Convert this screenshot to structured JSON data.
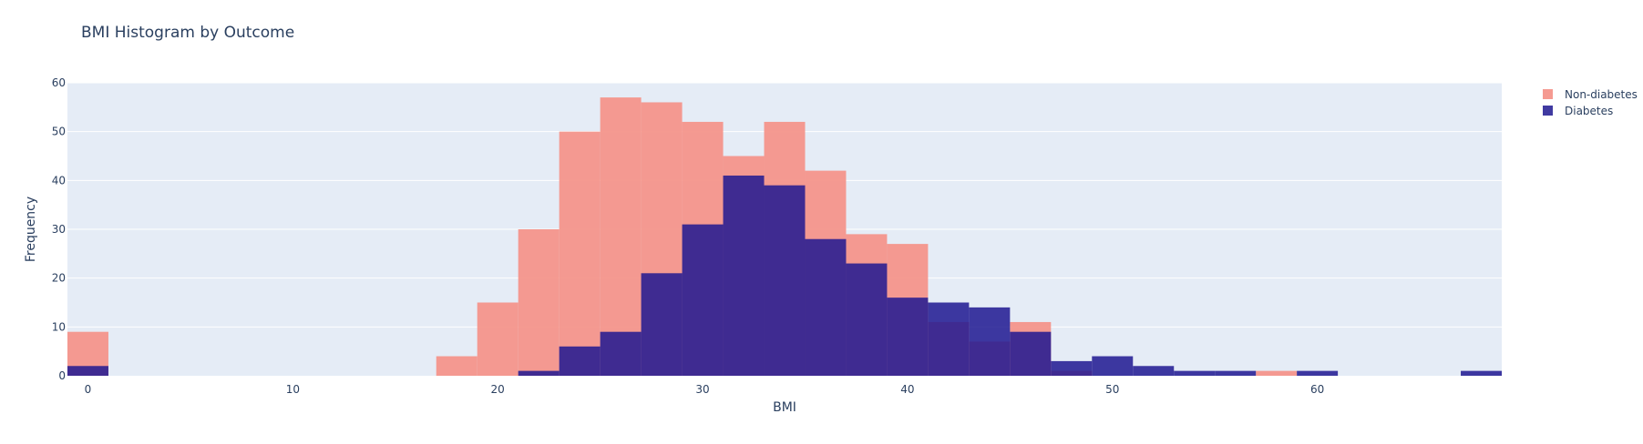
{
  "chart_data": {
    "type": "histogram",
    "title": "BMI Histogram by Outcome",
    "xlabel": "BMI",
    "ylabel": "Frequency",
    "xlim": [
      -1,
      69
    ],
    "ylim": [
      0,
      60
    ],
    "bin_width": 2,
    "x_ticks": [
      0,
      10,
      20,
      30,
      40,
      50,
      60
    ],
    "y_ticks": [
      0,
      10,
      20,
      30,
      40,
      50,
      60
    ],
    "legend_position": "top-right",
    "overlay": true,
    "series": [
      {
        "name": "Non-diabetes",
        "color": "#f4958b",
        "opacity": 0.95,
        "bins": [
          {
            "start": -1,
            "end": 1,
            "count": 9
          },
          {
            "start": 17,
            "end": 19,
            "count": 4
          },
          {
            "start": 19,
            "end": 21,
            "count": 15
          },
          {
            "start": 21,
            "end": 23,
            "count": 30
          },
          {
            "start": 23,
            "end": 25,
            "count": 50
          },
          {
            "start": 25,
            "end": 27,
            "count": 57
          },
          {
            "start": 27,
            "end": 29,
            "count": 56
          },
          {
            "start": 29,
            "end": 31,
            "count": 52
          },
          {
            "start": 31,
            "end": 33,
            "count": 45
          },
          {
            "start": 33,
            "end": 35,
            "count": 52
          },
          {
            "start": 35,
            "end": 37,
            "count": 42
          },
          {
            "start": 37,
            "end": 39,
            "count": 29
          },
          {
            "start": 39,
            "end": 41,
            "count": 27
          },
          {
            "start": 41,
            "end": 43,
            "count": 11
          },
          {
            "start": 43,
            "end": 45,
            "count": 7
          },
          {
            "start": 45,
            "end": 47,
            "count": 11
          },
          {
            "start": 47,
            "end": 49,
            "count": 1
          },
          {
            "start": 57,
            "end": 59,
            "count": 1
          }
        ]
      },
      {
        "name": "Diabetes",
        "color": "#1f1891",
        "opacity": 0.85,
        "bins": [
          {
            "start": -1,
            "end": 1,
            "count": 2
          },
          {
            "start": 21,
            "end": 23,
            "count": 1
          },
          {
            "start": 23,
            "end": 25,
            "count": 6
          },
          {
            "start": 25,
            "end": 27,
            "count": 9
          },
          {
            "start": 27,
            "end": 29,
            "count": 21
          },
          {
            "start": 29,
            "end": 31,
            "count": 31
          },
          {
            "start": 31,
            "end": 33,
            "count": 41
          },
          {
            "start": 33,
            "end": 35,
            "count": 39
          },
          {
            "start": 35,
            "end": 37,
            "count": 28
          },
          {
            "start": 37,
            "end": 39,
            "count": 23
          },
          {
            "start": 39,
            "end": 41,
            "count": 16
          },
          {
            "start": 41,
            "end": 43,
            "count": 15
          },
          {
            "start": 43,
            "end": 45,
            "count": 14
          },
          {
            "start": 45,
            "end": 47,
            "count": 9
          },
          {
            "start": 47,
            "end": 49,
            "count": 3
          },
          {
            "start": 49,
            "end": 51,
            "count": 4
          },
          {
            "start": 51,
            "end": 53,
            "count": 2
          },
          {
            "start": 53,
            "end": 55,
            "count": 1
          },
          {
            "start": 55,
            "end": 57,
            "count": 1
          },
          {
            "start": 59,
            "end": 61,
            "count": 1
          },
          {
            "start": 67,
            "end": 69,
            "count": 1
          }
        ]
      }
    ]
  },
  "colors": {
    "plot_background": "#e5ecf6",
    "gridline": "#ffffff",
    "text": "#2a3f5f"
  }
}
